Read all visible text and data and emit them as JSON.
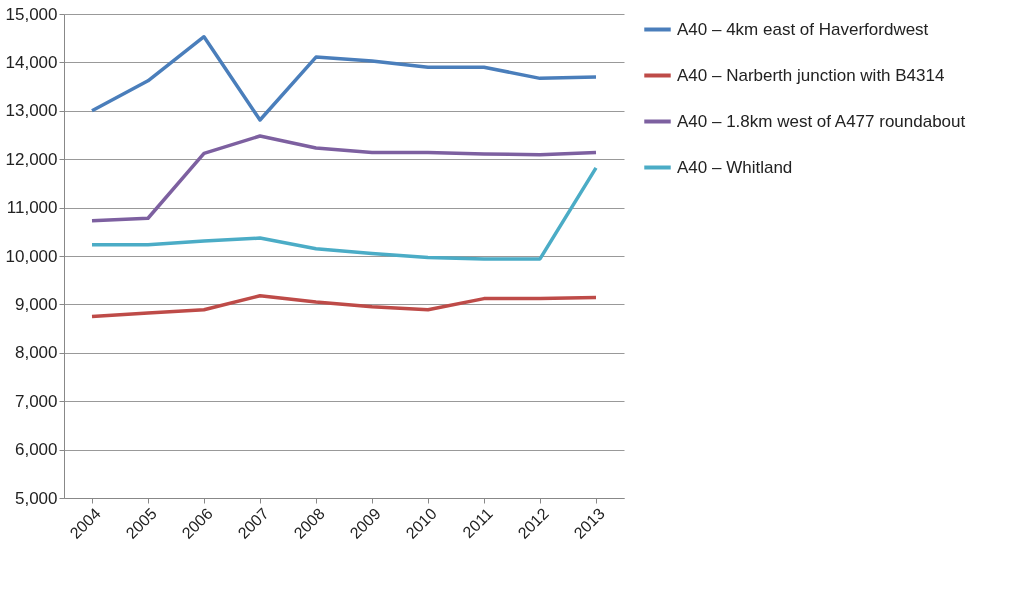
{
  "chart_data": {
    "type": "line",
    "categories": [
      "2004",
      "2005",
      "2006",
      "2007",
      "2008",
      "2009",
      "2010",
      "2011",
      "2012",
      "2013"
    ],
    "series": [
      {
        "name": "A40 – 4km east of Haverfordwest",
        "color": "#4a7ebb",
        "values": [
          13000,
          13620,
          14530,
          12810,
          14110,
          14030,
          13900,
          13900,
          13670,
          13700
        ]
      },
      {
        "name": "A40 – Narberth junction with B4314",
        "color": "#be4b48",
        "values": [
          8750,
          8820,
          8890,
          9180,
          9050,
          8950,
          8890,
          9120,
          9120,
          9140
        ]
      },
      {
        "name": "A40 – 1.8km west of A477 roundabout",
        "color": "#7d60a0",
        "values": [
          10730,
          10780,
          12120,
          12480,
          12230,
          12140,
          12140,
          12110,
          12090,
          12140
        ]
      },
      {
        "name": "A40 – Whitland",
        "color": "#4bacc6",
        "values": [
          10230,
          10230,
          10310,
          10370,
          10150,
          10050,
          9970,
          9940,
          9940,
          11820
        ]
      }
    ],
    "ylim": [
      5000,
      15000
    ],
    "yticks": [
      {
        "value": 5000,
        "label": "5,000"
      },
      {
        "value": 6000,
        "label": "6,000"
      },
      {
        "value": 7000,
        "label": "7,000"
      },
      {
        "value": 8000,
        "label": "8,000"
      },
      {
        "value": 9000,
        "label": "9,000"
      },
      {
        "value": 10000,
        "label": "10,000"
      },
      {
        "value": 11000,
        "label": "11,000"
      },
      {
        "value": 12000,
        "label": "12,000"
      },
      {
        "value": 13000,
        "label": "13,000"
      },
      {
        "value": 14000,
        "label": "14,000"
      },
      {
        "value": 15000,
        "label": "15,000"
      }
    ],
    "grid": "y",
    "legend": "right",
    "marker": "none",
    "line_style": "solid"
  }
}
